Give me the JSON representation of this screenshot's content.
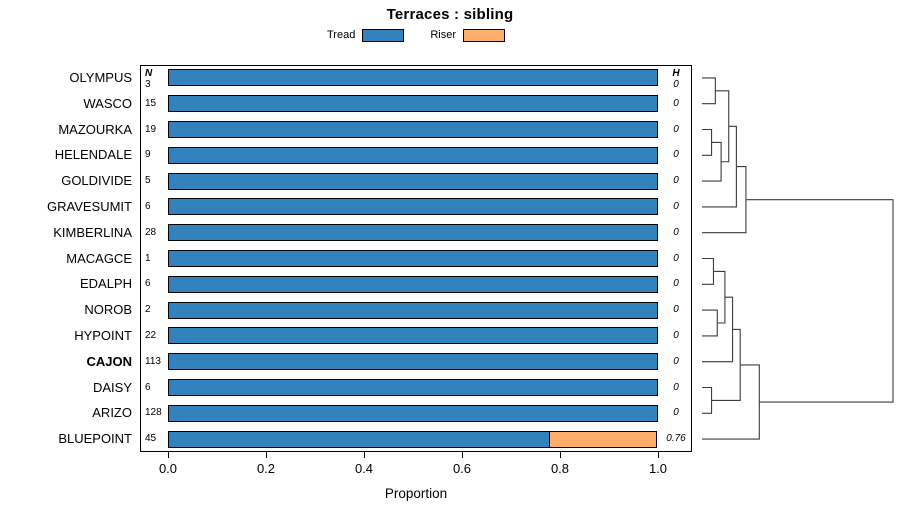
{
  "title": "Terraces : sibling",
  "legend": {
    "tread_label": "Tread",
    "riser_label": "Riser"
  },
  "columns": {
    "n_header": "N",
    "h_header": "H"
  },
  "xlabel": "Proportion",
  "x_ticks": [
    "0.0",
    "0.2",
    "0.4",
    "0.6",
    "0.8",
    "1.0"
  ],
  "colors": {
    "tread": "#3182bd",
    "riser": "#fdae6b",
    "axis": "#000000",
    "dendro": "#3c3c3c"
  },
  "chart_data": {
    "type": "bar",
    "stacked": true,
    "orientation": "horizontal",
    "title": "Terraces : sibling",
    "xlabel": "Proportion",
    "xlim": [
      0,
      1
    ],
    "legend_position": "top",
    "series_names": [
      "Tread",
      "Riser"
    ],
    "rows": [
      {
        "label": "OLYMPUS",
        "n": 3,
        "tread": 1.0,
        "riser": 0.0,
        "h": "0"
      },
      {
        "label": "WASCO",
        "n": 15,
        "tread": 1.0,
        "riser": 0.0,
        "h": "0"
      },
      {
        "label": "MAZOURKA",
        "n": 19,
        "tread": 1.0,
        "riser": 0.0,
        "h": "0"
      },
      {
        "label": "HELENDALE",
        "n": 9,
        "tread": 1.0,
        "riser": 0.0,
        "h": "0"
      },
      {
        "label": "GOLDIVIDE",
        "n": 5,
        "tread": 1.0,
        "riser": 0.0,
        "h": "0"
      },
      {
        "label": "GRAVESUMIT",
        "n": 6,
        "tread": 1.0,
        "riser": 0.0,
        "h": "0"
      },
      {
        "label": "KIMBERLINA",
        "n": 28,
        "tread": 1.0,
        "riser": 0.0,
        "h": "0"
      },
      {
        "label": "MACAGCE",
        "n": 1,
        "tread": 1.0,
        "riser": 0.0,
        "h": "0"
      },
      {
        "label": "EDALPH",
        "n": 6,
        "tread": 1.0,
        "riser": 0.0,
        "h": "0"
      },
      {
        "label": "NOROB",
        "n": 2,
        "tread": 1.0,
        "riser": 0.0,
        "h": "0"
      },
      {
        "label": "HYPOINT",
        "n": 22,
        "tread": 1.0,
        "riser": 0.0,
        "h": "0"
      },
      {
        "label": "CAJON",
        "n": 113,
        "tread": 1.0,
        "riser": 0.0,
        "h": "0",
        "emphasis": true
      },
      {
        "label": "DAISY",
        "n": 6,
        "tread": 1.0,
        "riser": 0.0,
        "h": "0"
      },
      {
        "label": "ARIZO",
        "n": 128,
        "tread": 1.0,
        "riser": 0.0,
        "h": "0"
      },
      {
        "label": "BLUEPOINT",
        "n": 45,
        "tread": 0.78,
        "riser": 0.22,
        "h": "0.76"
      }
    ],
    "dendrogram": {
      "hmax": 1.0,
      "merges": [
        {
          "id": "M0",
          "a": "L0",
          "b": "L1",
          "h": 0.07
        },
        {
          "id": "M1",
          "a": "L2",
          "b": "L3",
          "h": 0.05
        },
        {
          "id": "M2",
          "a": "M1",
          "b": "L4",
          "h": 0.1
        },
        {
          "id": "M3",
          "a": "M0",
          "b": "M2",
          "h": 0.14
        },
        {
          "id": "M4",
          "a": "M3",
          "b": "L5",
          "h": 0.18
        },
        {
          "id": "M5",
          "a": "M4",
          "b": "L6",
          "h": 0.23
        },
        {
          "id": "M6",
          "a": "L7",
          "b": "L8",
          "h": 0.06
        },
        {
          "id": "M7",
          "a": "L9",
          "b": "L10",
          "h": 0.08
        },
        {
          "id": "M8",
          "a": "M6",
          "b": "M7",
          "h": 0.12
        },
        {
          "id": "M9",
          "a": "M8",
          "b": "L11",
          "h": 0.16
        },
        {
          "id": "M10",
          "a": "L12",
          "b": "L13",
          "h": 0.05
        },
        {
          "id": "M11",
          "a": "M9",
          "b": "M10",
          "h": 0.2
        },
        {
          "id": "M12",
          "a": "M11",
          "b": "L14",
          "h": 0.3
        },
        {
          "id": "M13",
          "a": "M5",
          "b": "M12",
          "h": 1.0
        }
      ]
    }
  }
}
